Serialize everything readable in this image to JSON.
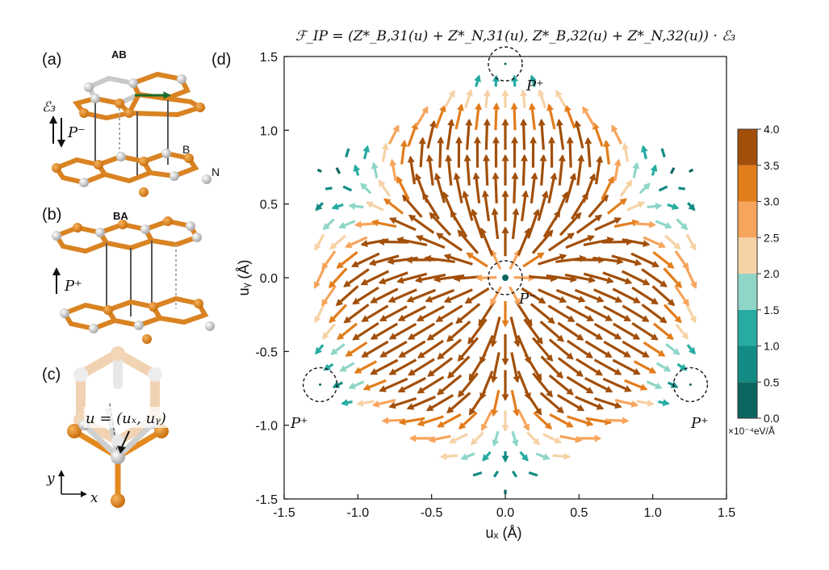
{
  "panels": {
    "a": {
      "label": "(a)",
      "stacking": "AB",
      "field_label": "ℰ₃",
      "polarization": "P⁻",
      "atom_b": "B",
      "atom_n": "N"
    },
    "b": {
      "label": "(b)",
      "stacking": "BA",
      "polarization": "P⁺"
    },
    "c": {
      "label": "(c)",
      "vector_label": "u = (uₓ, uᵧ)",
      "axis_x": "x",
      "axis_y": "y"
    },
    "d": {
      "label": "(d)",
      "formula": "ℱ_IP = (Z*_B,31(u) + Z*_N,31(u), Z*_B,32(u) + Z*_N,32(u)) · ℰ₃"
    }
  },
  "markers": {
    "top": "P⁺",
    "center": "P⁻",
    "left": "P⁺",
    "right": "P⁺"
  },
  "colorbar": {
    "unit": "×10⁻⁴eV/Å",
    "ticks": [
      "4.0",
      "3.5",
      "3.0",
      "2.5",
      "2.0",
      "1.5",
      "1.0",
      "0.5",
      "0.0"
    ],
    "bins": [
      {
        "min": 0.0,
        "max": 0.5,
        "color": "#0b6660"
      },
      {
        "min": 0.5,
        "max": 1.0,
        "color": "#128c84"
      },
      {
        "min": 1.0,
        "max": 1.5,
        "color": "#27aba2"
      },
      {
        "min": 1.5,
        "max": 2.0,
        "color": "#8fd6c8"
      },
      {
        "min": 2.0,
        "max": 2.5,
        "color": "#f6d2a6"
      },
      {
        "min": 2.5,
        "max": 3.0,
        "color": "#f7a45c"
      },
      {
        "min": 3.0,
        "max": 3.5,
        "color": "#e27d1c"
      },
      {
        "min": 3.5,
        "max": 4.0,
        "color": "#a24f0a"
      }
    ]
  },
  "chart_data": {
    "type": "quiver",
    "title": "",
    "xlabel": "uₓ (Å)",
    "ylabel": "uᵧ (Å)",
    "xlim": [
      -1.5,
      1.5
    ],
    "ylim": [
      -1.5,
      1.5
    ],
    "xticks": [
      "-1.5",
      "-1.0",
      "-0.5",
      "0.0",
      "0.5",
      "1.0",
      "1.5"
    ],
    "yticks": [
      "-1.5",
      "-1.0",
      "-0.5",
      "0.0",
      "0.5",
      "1.0",
      "1.5"
    ],
    "grid": false,
    "field_model": "in-plane force vectors pointing away from the central P⁻ domain toward the three P⁺ corners; magnitude colored 0–4 ×10⁻⁴ eV/Å",
    "hexagon_corners": [
      [
        0.0,
        1.45
      ],
      [
        1.256,
        0.725
      ],
      [
        1.256,
        -0.725
      ],
      [
        0.0,
        -1.45
      ],
      [
        -1.256,
        -0.725
      ],
      [
        -1.256,
        0.725
      ]
    ],
    "sinks": [
      [
        0.0,
        1.45
      ],
      [
        -1.256,
        -0.725
      ],
      [
        1.256,
        -0.725
      ]
    ],
    "source": [
      0.0,
      0.0
    ],
    "grid_step_x": 0.126,
    "grid_step_y": 0.121
  }
}
